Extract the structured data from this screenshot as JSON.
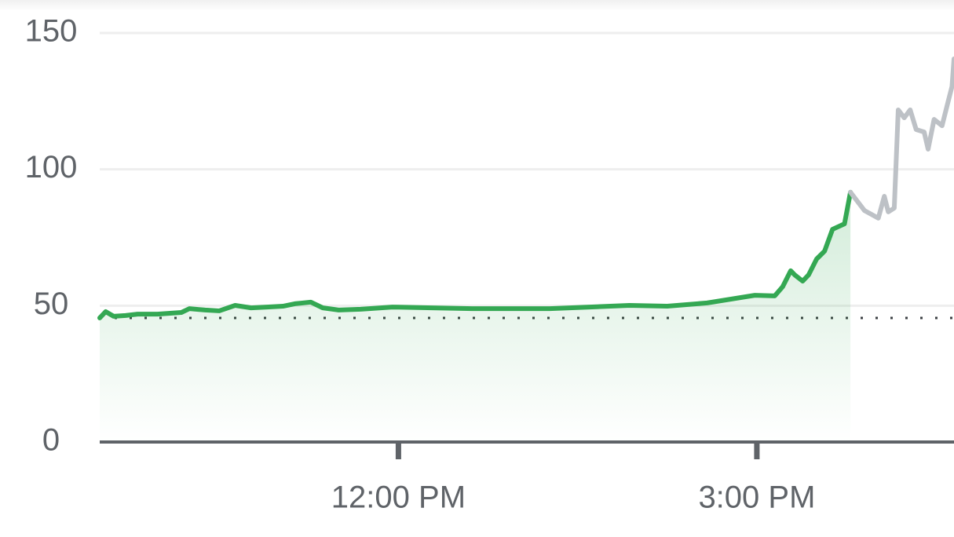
{
  "chart_data": {
    "type": "line",
    "xlim": [
      570,
      999
    ],
    "xticks": [
      {
        "value": 720,
        "label": "12:00 PM"
      },
      {
        "value": 900,
        "label": "3:00 PM"
      }
    ],
    "ylim": [
      0,
      150
    ],
    "yticks": [
      0,
      50,
      100,
      150
    ],
    "grid": true,
    "reference_line": 45.5,
    "series": [
      {
        "color": "#34a853",
        "area": true,
        "x": [
          570,
          573,
          577,
          583,
          589,
          599,
          611,
          615,
          623,
          630,
          638,
          646,
          654,
          662,
          668,
          676,
          682,
          690,
          701,
          717,
          737,
          757,
          776,
          796,
          816,
          836,
          855,
          875,
          887,
          899,
          909,
          913,
          917,
          919,
          923,
          926,
          930,
          934,
          938,
          944,
          947
        ],
        "values": [
          45.5,
          47.8,
          46.1,
          46.4,
          46.9,
          46.9,
          47.5,
          48.9,
          48.4,
          48.1,
          50.1,
          49.2,
          49.5,
          49.8,
          50.7,
          51.3,
          49.2,
          48.4,
          48.7,
          49.5,
          49.2,
          48.9,
          48.9,
          48.9,
          49.5,
          50.1,
          49.8,
          51.0,
          52.4,
          53.8,
          53.6,
          57.0,
          62.8,
          61.3,
          59.0,
          61.3,
          67.1,
          70.0,
          78.0,
          80.0,
          91.6
        ]
      },
      {
        "color": "#bdc1c6",
        "area": false,
        "x": [
          947,
          954,
          961,
          964,
          966,
          969,
          971,
          974,
          977,
          980,
          984,
          986,
          989,
          993,
          996,
          998,
          999
        ],
        "values": [
          91.6,
          84.9,
          82.1,
          90.1,
          84.4,
          85.8,
          121.8,
          118.9,
          121.8,
          114.6,
          113.7,
          107.4,
          118.3,
          116.0,
          124.7,
          130.4,
          140.5
        ]
      }
    ]
  }
}
